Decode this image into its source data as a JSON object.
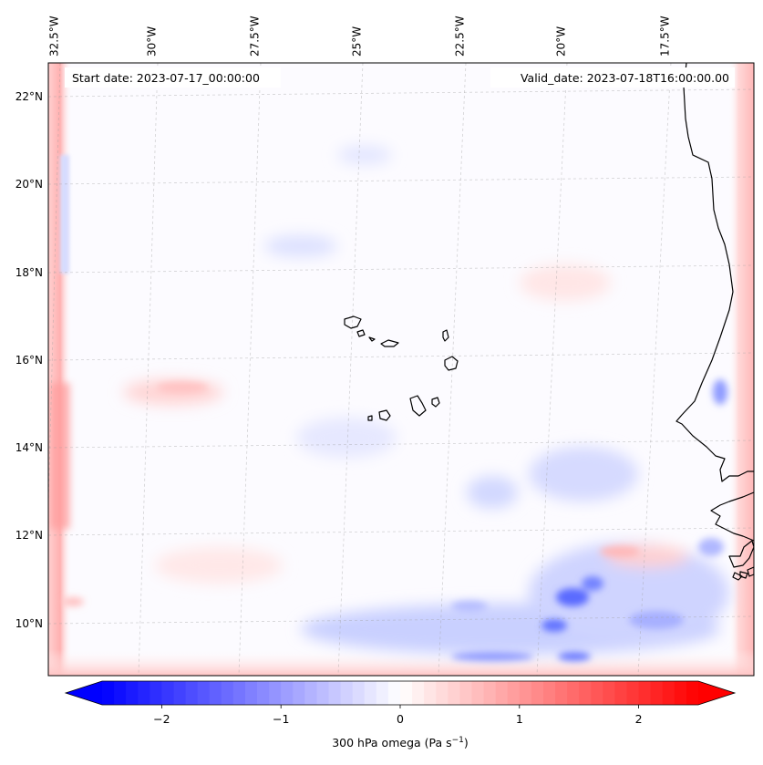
{
  "map": {
    "start_date": "Start date: 2023-07-17_00:00:00",
    "valid_date": "Valid_date: 2023-07-18T16:00:00.00",
    "lon_labels": [
      "32.5°W",
      "30°W",
      "27.5°W",
      "25°W",
      "22.5°W",
      "20°W",
      "17.5°W"
    ],
    "lat_labels": [
      "22°N",
      "20°N",
      "18°N",
      "16°N",
      "14°N",
      "12°N",
      "10°N"
    ],
    "extent": {
      "lon_min": -32.9,
      "lon_max": -15.7,
      "lat_min": 8.9,
      "lat_max": 22.8
    },
    "variable": "300 hPa omega"
  },
  "colorbar": {
    "tick_labels": [
      "−2",
      "−1",
      "0",
      "1",
      "2"
    ],
    "range": [
      -2.5,
      2.5
    ],
    "label_main": "300 hPa omega (Pa s",
    "label_exp": "−1",
    "label_end": ")",
    "colormap": "bwr",
    "color_min": "#0000ff",
    "color_mid": "#ffffff",
    "color_max": "#ff0000"
  }
}
